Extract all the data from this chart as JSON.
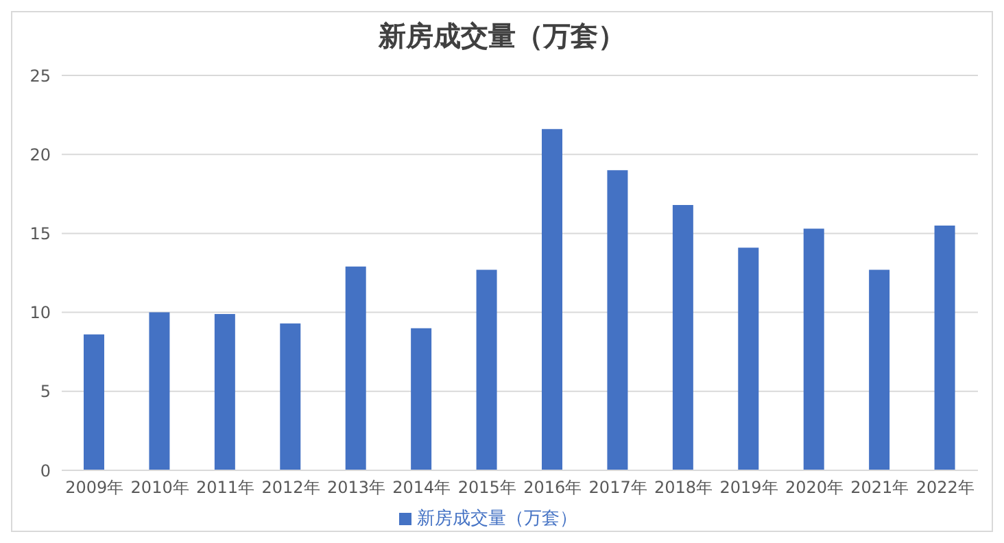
{
  "chart_data": {
    "type": "bar",
    "title": "新房成交量（万套）",
    "categories": [
      "2009年",
      "2010年",
      "2011年",
      "2012年",
      "2013年",
      "2014年",
      "2015年",
      "2016年",
      "2017年",
      "2018年",
      "2019年",
      "2020年",
      "2021年",
      "2022年"
    ],
    "series": [
      {
        "name": "新房成交量（万套）",
        "color": "#4472c4",
        "values": [
          8.6,
          10.0,
          9.9,
          9.3,
          12.9,
          9.0,
          12.7,
          21.6,
          19.0,
          16.8,
          14.1,
          15.3,
          12.7,
          15.5
        ]
      }
    ],
    "ylim": [
      0,
      25
    ],
    "yticks": [
      0,
      5,
      10,
      15,
      20,
      25
    ],
    "grid": "y",
    "legend": "bottom"
  }
}
